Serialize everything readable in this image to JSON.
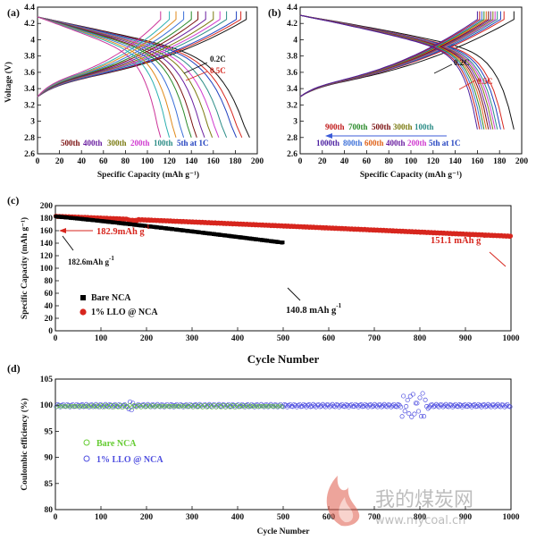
{
  "chart_data": [
    {
      "panel": "(a)",
      "type": "line",
      "xlabel": "Specific Capacity (mAh g⁻¹)",
      "ylabel": "Voltage (V)",
      "xlim": [
        0,
        200
      ],
      "ylim": [
        2.6,
        4.4
      ],
      "xticks": [
        0,
        20,
        40,
        60,
        80,
        100,
        120,
        140,
        160,
        180,
        200
      ],
      "yticks": [
        2.6,
        2.8,
        3.0,
        3.2,
        3.4,
        3.6,
        3.8,
        4.0,
        4.2,
        4.4
      ],
      "series": [
        {
          "name": "0.2C",
          "color": "#111111",
          "charge_end": 190,
          "discharge_end": 193
        },
        {
          "name": "0.5C",
          "color": "#d7261e",
          "charge_end": 185,
          "discharge_end": 186
        },
        {
          "name": "5th at 1C",
          "color": "#1f3fbf",
          "charge_end": 181,
          "discharge_end": 181
        },
        {
          "name": "100th",
          "color": "#2b8c86",
          "charge_end": 172,
          "discharge_end": 172
        },
        {
          "name": "200th",
          "color": "#d03bd0",
          "charge_end": 166,
          "discharge_end": 165
        },
        {
          "name": "300th",
          "color": "#7a7a10",
          "charge_end": 160,
          "discharge_end": 159
        },
        {
          "name": "400th",
          "color": "#6a1fa0",
          "charge_end": 153,
          "discharge_end": 152
        },
        {
          "name": "500th",
          "color": "#7a1010",
          "charge_end": 146,
          "discharge_end": 145
        },
        {
          "name": "",
          "color": "#2a8a2a",
          "charge_end": 140,
          "discharge_end": 140
        },
        {
          "name": "",
          "color": "#3b6fd8",
          "charge_end": 133,
          "discharge_end": 133
        },
        {
          "name": "",
          "color": "#e08a1a",
          "charge_end": 126,
          "discharge_end": 126
        },
        {
          "name": "",
          "color": "#2bb0b0",
          "charge_end": 120,
          "discharge_end": 120
        },
        {
          "name": "",
          "color": "#cc3399",
          "charge_end": 112,
          "discharge_end": 112
        }
      ],
      "annotations": [
        "0.2C",
        "0.5C"
      ],
      "cycle_labels": [
        "500th",
        "400th",
        "300th",
        "200th",
        "100th",
        "5th at 1C"
      ]
    },
    {
      "panel": "(b)",
      "type": "line",
      "xlabel": "Specific Capacity (mAh g⁻¹)",
      "ylabel": "",
      "xlim": [
        0,
        200
      ],
      "ylim": [
        2.6,
        4.4
      ],
      "xticks": [
        0,
        20,
        40,
        60,
        80,
        100,
        120,
        140,
        160,
        180,
        200
      ],
      "yticks": [
        2.6,
        2.8,
        3.0,
        3.2,
        3.4,
        3.6,
        3.8,
        4.0,
        4.2,
        4.4
      ],
      "series": [
        {
          "name": "0.2C",
          "color": "#111111",
          "charge_end": 193,
          "discharge_end": 193
        },
        {
          "name": "0.5C",
          "color": "#d7261e",
          "charge_end": 184,
          "discharge_end": 184
        },
        {
          "name": "5th at 1C",
          "color": "#1f3fbf",
          "charge_end": 181,
          "discharge_end": 181
        },
        {
          "name": "100th",
          "color": "#2b8c86",
          "charge_end": 178,
          "discharge_end": 178
        },
        {
          "name": "200th",
          "color": "#d03bd0",
          "charge_end": 176,
          "discharge_end": 176
        },
        {
          "name": "300th",
          "color": "#7a7a10",
          "charge_end": 174,
          "discharge_end": 174
        },
        {
          "name": "400th",
          "color": "#6a1fa0",
          "charge_end": 172,
          "discharge_end": 172
        },
        {
          "name": "500th",
          "color": "#7a1010",
          "charge_end": 170,
          "discharge_end": 170
        },
        {
          "name": "600th",
          "color": "#e0631a",
          "charge_end": 168,
          "discharge_end": 168
        },
        {
          "name": "700th",
          "color": "#2a8a2a",
          "charge_end": 166,
          "discharge_end": 166
        },
        {
          "name": "800th",
          "color": "#3b6fd8",
          "charge_end": 164,
          "discharge_end": 164
        },
        {
          "name": "900th",
          "color": "#c11a1a",
          "charge_end": 162,
          "discharge_end": 162
        },
        {
          "name": "1000th",
          "color": "#4b1fa0",
          "charge_end": 160,
          "discharge_end": 160
        }
      ],
      "annotations": [
        "0.2C",
        "0.5C"
      ],
      "cycle_labels_row1": [
        "900th",
        "700th",
        "500th",
        "300th",
        "100th"
      ],
      "cycle_labels_row2": [
        "1000th",
        "800th",
        "600th",
        "400th",
        "200th",
        "5th at 1C"
      ]
    },
    {
      "panel": "(c)",
      "type": "scatter",
      "xlabel": "Cycle Number",
      "ylabel": "Specific Capacity (mAh g⁻¹)",
      "xlim": [
        0,
        1000
      ],
      "ylim": [
        0,
        200
      ],
      "xticks": [
        0,
        100,
        200,
        300,
        400,
        500,
        600,
        700,
        800,
        900,
        1000
      ],
      "yticks": [
        0,
        20,
        40,
        60,
        80,
        100,
        120,
        140,
        160,
        180,
        200
      ],
      "legend_position": "lower-left",
      "series": [
        {
          "name": "Bare NCA",
          "color": "#000000",
          "marker": "square",
          "cycles": 500,
          "start": 182.6,
          "end": 140.8
        },
        {
          "name": "1% LLO @ NCA",
          "color": "#d7261e",
          "marker": "circle",
          "cycles": 1000,
          "start": 182.9,
          "end": 151.1
        }
      ],
      "annotations": [
        {
          "text": "182.9mAh g",
          "sup": "-1",
          "color": "#d7261e"
        },
        {
          "text": "182.6mAh g",
          "sup": "-1",
          "color": "#111111"
        },
        {
          "text": "140.8 mAh g",
          "sup": "-1",
          "color": "#111111"
        },
        {
          "text": "151.1 mAh g",
          "sup": "-1",
          "color": "#d7261e"
        }
      ]
    },
    {
      "panel": "(d)",
      "type": "scatter",
      "xlabel": "Cycle Number",
      "ylabel": "Coulombic efficiency (%)",
      "xlim": [
        0,
        1000
      ],
      "ylim": [
        80,
        105
      ],
      "xticks": [
        0,
        100,
        200,
        300,
        400,
        500,
        600,
        700,
        800,
        900,
        1000
      ],
      "yticks": [
        80,
        85,
        90,
        95,
        100,
        105
      ],
      "legend_position": "lower-left",
      "series": [
        {
          "name": "Bare NCA",
          "color": "#66cc33",
          "marker": "open-circle",
          "cycles": 500,
          "mean": 99.8
        },
        {
          "name": "1% LLO @ NCA",
          "color": "#5050e0",
          "marker": "open-circle",
          "cycles": 1000,
          "mean": 99.9
        }
      ]
    }
  ],
  "watermark": {
    "title": "我的煤炭网",
    "url": "www.mycoal.cn"
  }
}
